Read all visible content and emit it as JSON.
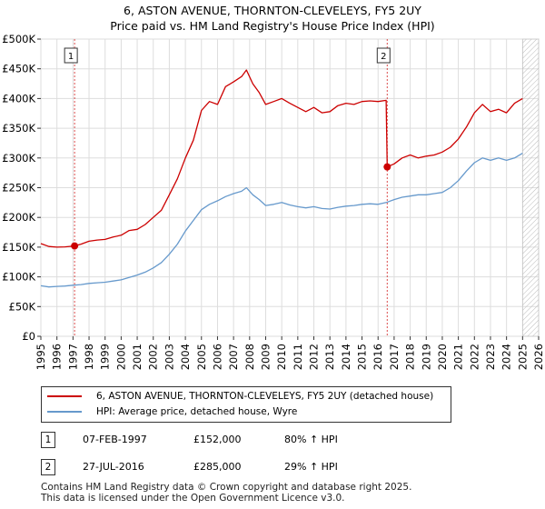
{
  "title_line1": "6, ASTON AVENUE, THORNTON-CLEVELEYS, FY5 2UY",
  "title_line2": "Price paid vs. HM Land Registry's House Price Index (HPI)",
  "colors": {
    "property": "#cc0000",
    "hpi": "#6699cc",
    "grid": "#dddddd",
    "hatch": "#bbbbbb",
    "marker": "#cc0000"
  },
  "chart_data": {
    "type": "line",
    "ylim": [
      0,
      500000
    ],
    "xlim": [
      1995.0,
      2026.0
    ],
    "y_ticks": [
      0,
      50000,
      100000,
      150000,
      200000,
      250000,
      300000,
      350000,
      400000,
      450000,
      500000
    ],
    "y_tick_labels": [
      "£0",
      "£50K",
      "£100K",
      "£150K",
      "£200K",
      "£250K",
      "£300K",
      "£350K",
      "£400K",
      "£450K",
      "£500K"
    ],
    "x_ticks": [
      1995,
      1996,
      1997,
      1998,
      1999,
      2000,
      2001,
      2002,
      2003,
      2004,
      2005,
      2006,
      2007,
      2008,
      2009,
      2010,
      2011,
      2012,
      2013,
      2014,
      2015,
      2016,
      2017,
      2018,
      2019,
      2020,
      2021,
      2022,
      2023,
      2024,
      2025,
      2026
    ],
    "x_tick_labels": [
      "1995",
      "1996",
      "1997",
      "1998",
      "1999",
      "2000",
      "2001",
      "2002",
      "2003",
      "2004",
      "2005",
      "2006",
      "2007",
      "2008",
      "2009",
      "2010",
      "2011",
      "2012",
      "2013",
      "2014",
      "2015",
      "2016",
      "2017",
      "2018",
      "2019",
      "2020",
      "2021",
      "2022",
      "2023",
      "2024",
      "2025",
      "2026"
    ],
    "hatch_from_year": 2025.0,
    "series": [
      {
        "name": "6, ASTON AVENUE, THORNTON-CLEVELEYS, FY5 2UY (detached house)",
        "color": "#cc0000",
        "x": [
          1995.0,
          1995.5,
          1996.0,
          1996.5,
          1997.1,
          1997.5,
          1998.0,
          1998.5,
          1999.0,
          1999.5,
          2000.0,
          2000.5,
          2001.0,
          2001.5,
          2002.0,
          2002.5,
          2003.0,
          2003.5,
          2004.0,
          2004.5,
          2005.0,
          2005.5,
          2006.0,
          2006.5,
          2007.0,
          2007.5,
          2007.8,
          2008.2,
          2008.6,
          2009.0,
          2009.5,
          2010.0,
          2010.5,
          2011.0,
          2011.5,
          2012.0,
          2012.5,
          2013.0,
          2013.5,
          2014.0,
          2014.5,
          2015.0,
          2015.5,
          2016.0,
          2016.5,
          2016.57,
          2017.0,
          2017.5,
          2018.0,
          2018.5,
          2019.0,
          2019.5,
          2020.0,
          2020.5,
          2021.0,
          2021.5,
          2022.0,
          2022.5,
          2023.0,
          2023.5,
          2024.0,
          2024.5,
          2025.0
        ],
        "y": [
          156000,
          151000,
          150000,
          150500,
          152000,
          155000,
          160000,
          162000,
          163000,
          167000,
          170000,
          178000,
          180000,
          188000,
          200000,
          212000,
          238000,
          265000,
          300000,
          330000,
          380000,
          395000,
          390000,
          420000,
          428000,
          437000,
          448000,
          425000,
          410000,
          390000,
          395000,
          400000,
          392000,
          385000,
          378000,
          385000,
          376000,
          378000,
          388000,
          392000,
          390000,
          395000,
          396000,
          395000,
          397000,
          285000,
          290000,
          300000,
          305000,
          300000,
          303000,
          305000,
          310000,
          318000,
          332000,
          352000,
          376000,
          390000,
          378000,
          382000,
          376000,
          392000,
          400000
        ]
      },
      {
        "name": "HPI: Average price, detached house, Wyre",
        "color": "#6699cc",
        "x": [
          1995.0,
          1995.5,
          1996.0,
          1996.5,
          1997.0,
          1997.5,
          1998.0,
          1998.5,
          1999.0,
          1999.5,
          2000.0,
          2000.5,
          2001.0,
          2001.5,
          2002.0,
          2002.5,
          2003.0,
          2003.5,
          2004.0,
          2004.5,
          2005.0,
          2005.5,
          2006.0,
          2006.5,
          2007.0,
          2007.5,
          2007.8,
          2008.2,
          2008.6,
          2009.0,
          2009.5,
          2010.0,
          2010.5,
          2011.0,
          2011.5,
          2012.0,
          2012.5,
          2013.0,
          2013.5,
          2014.0,
          2014.5,
          2015.0,
          2015.5,
          2016.0,
          2016.5,
          2017.0,
          2017.5,
          2018.0,
          2018.5,
          2019.0,
          2019.5,
          2020.0,
          2020.5,
          2021.0,
          2021.5,
          2022.0,
          2022.5,
          2023.0,
          2023.5,
          2024.0,
          2024.5,
          2025.0
        ],
        "y": [
          85000,
          83000,
          84000,
          84500,
          86000,
          87000,
          89000,
          90000,
          91000,
          93000,
          95000,
          99000,
          103000,
          108000,
          115000,
          124000,
          138000,
          155000,
          177000,
          195000,
          213000,
          222000,
          228000,
          235000,
          240000,
          244000,
          250000,
          238000,
          230000,
          220000,
          222000,
          225000,
          221000,
          218000,
          216000,
          218000,
          215000,
          214000,
          217000,
          219000,
          220000,
          222000,
          223000,
          222000,
          225000,
          230000,
          234000,
          236000,
          238000,
          238000,
          240000,
          242000,
          250000,
          262000,
          278000,
          292000,
          300000,
          296000,
          300000,
          296000,
          300000,
          308000
        ]
      }
    ],
    "annotations": [
      {
        "label": "1",
        "x": 1997.1,
        "y": 152000
      },
      {
        "label": "2",
        "x": 2016.57,
        "y": 285000
      }
    ]
  },
  "legend": {
    "property_label": "6, ASTON AVENUE, THORNTON-CLEVELEYS, FY5 2UY (detached house)",
    "hpi_label": "HPI: Average price, detached house, Wyre"
  },
  "transactions": [
    {
      "num": "1",
      "date": "07-FEB-1997",
      "price": "£152,000",
      "hpi": "80% ↑ HPI"
    },
    {
      "num": "2",
      "date": "27-JUL-2016",
      "price": "£285,000",
      "hpi": "29% ↑ HPI"
    }
  ],
  "footer_line1": "Contains HM Land Registry data © Crown copyright and database right 2025.",
  "footer_line2": "This data is licensed under the Open Government Licence v3.0."
}
